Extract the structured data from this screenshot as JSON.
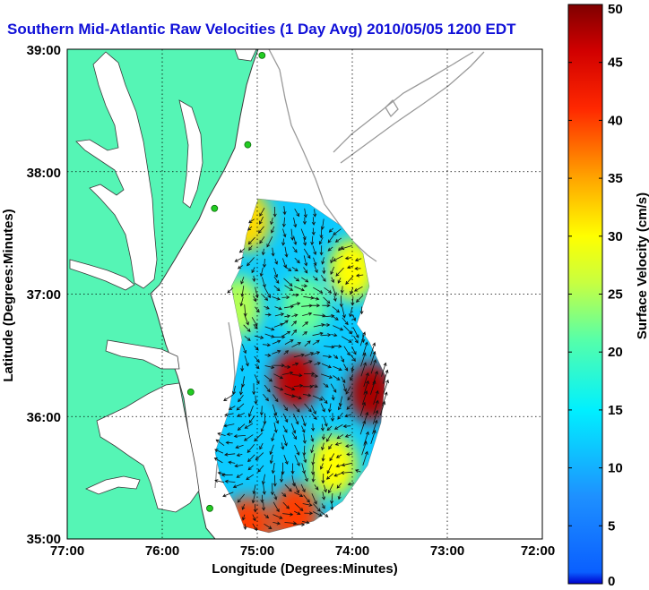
{
  "chart_data": {
    "type": "heatmap",
    "title": "Southern Mid-Atlantic Raw Velocities (1 Day Avg) 2010/05/05 1200 EDT",
    "xlabel": "Longitude (Degrees:Minutes)",
    "ylabel": "Latitude (Degrees:Minutes)",
    "x_tick_labels": [
      "77:00",
      "76:00",
      "75:00",
      "74:00",
      "73:00",
      "72:00"
    ],
    "x_tick_values": [
      -77,
      -76,
      -75,
      -74,
      -73,
      -72
    ],
    "y_tick_labels": [
      "39:00",
      "38:00",
      "37:00",
      "36:00",
      "35:00"
    ],
    "y_tick_values": [
      39,
      38,
      37,
      36,
      35
    ],
    "xlim": [
      -77,
      -72
    ],
    "ylim": [
      35,
      39
    ],
    "grid": true,
    "colorbar": {
      "label": "Surface Velocity (cm/s)",
      "min": 0,
      "max": 50,
      "tick_values": [
        0,
        5,
        10,
        15,
        20,
        25,
        30,
        35,
        40,
        45,
        50
      ],
      "tick_labels": [
        "0",
        "5",
        "10",
        "15",
        "20",
        "25",
        "30",
        "35",
        "40",
        "45",
        "50"
      ]
    },
    "hotspots": [
      {
        "lon": -74.6,
        "lat": 36.3,
        "value": 47
      },
      {
        "lon": -73.8,
        "lat": 36.2,
        "value": 48
      },
      {
        "lon": -74.2,
        "lat": 35.6,
        "value": 30
      },
      {
        "lon": -74.6,
        "lat": 35.2,
        "value": 40
      },
      {
        "lon": -75.1,
        "lat": 37.6,
        "value": 32
      },
      {
        "lon": -74.0,
        "lat": 37.2,
        "value": 30
      },
      {
        "lon": -75.2,
        "lat": 36.9,
        "value": 25
      },
      {
        "lon": -74.5,
        "lat": 36.9,
        "value": 22
      },
      {
        "lon": -75.1,
        "lat": 35.1,
        "value": 40
      }
    ],
    "background_value": 12,
    "stations": [
      {
        "lon": -74.95,
        "lat": 38.95
      },
      {
        "lon": -75.1,
        "lat": 38.22
      },
      {
        "lon": -75.45,
        "lat": 37.7
      },
      {
        "lon": -75.7,
        "lat": 36.2
      },
      {
        "lon": -75.5,
        "lat": 35.25
      }
    ],
    "colors": {
      "land": "#55f5b5",
      "water": "#ffffff",
      "coastline": "#3b3b3b",
      "bathymetry": "#9a9a9a",
      "title": "#1010d8",
      "station": "#22cc22"
    }
  }
}
